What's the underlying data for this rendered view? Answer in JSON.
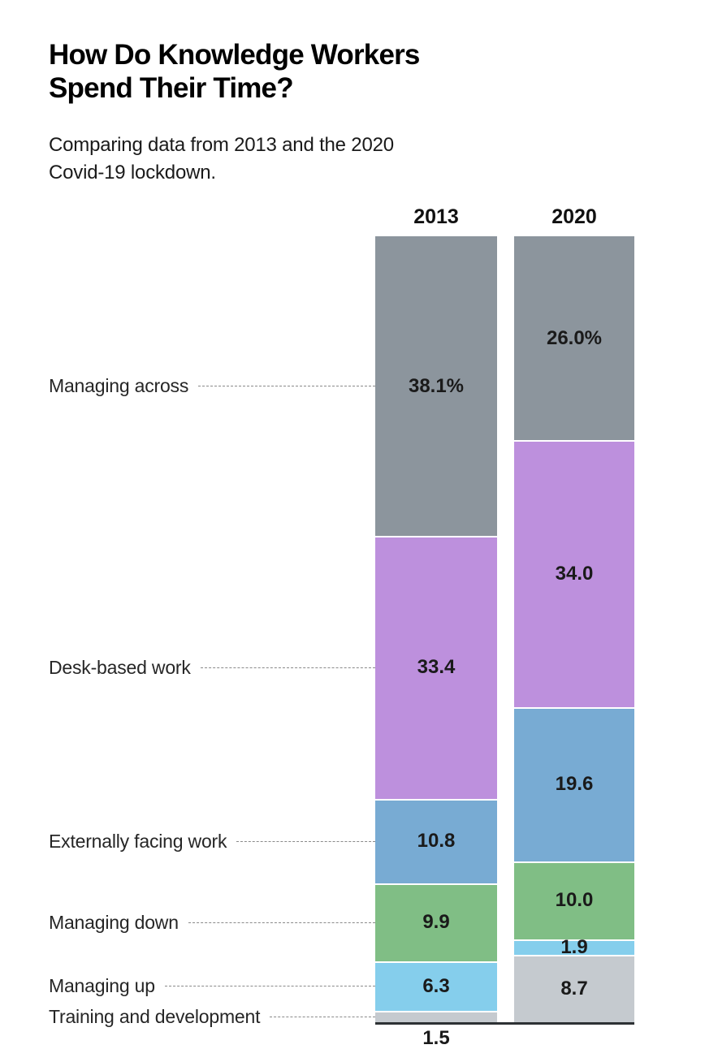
{
  "header": {
    "title_lines": [
      "How Do Knowledge Workers",
      "Spend Their Time?"
    ],
    "subtitle_lines": [
      "Comparing data from 2013 and the 2020",
      "Covid-19 lockdown."
    ]
  },
  "chart_data": {
    "type": "bar",
    "variant": "100%-stacked-vertical",
    "title": "How Do Knowledge Workers Spend Their Time?",
    "subtitle": "Comparing data from 2013 and the 2020 Covid-19 lockdown.",
    "columns": [
      "2013",
      "2020"
    ],
    "categories": [
      "Managing across",
      "Desk-based work",
      "Externally facing work",
      "Managing down",
      "Managing up",
      "Training and development"
    ],
    "series": [
      {
        "name": "2013",
        "values": [
          38.1,
          33.4,
          10.8,
          9.9,
          6.3,
          1.5
        ],
        "display": [
          "38.1%",
          "33.4",
          "10.8",
          "9.9",
          "6.3",
          "1.5"
        ],
        "outside_labels": [
          false,
          false,
          false,
          false,
          false,
          true
        ]
      },
      {
        "name": "2020",
        "values": [
          26.0,
          34.0,
          19.6,
          10.0,
          1.9,
          8.7
        ],
        "display": [
          "26.0%",
          "34.0",
          "19.6",
          "10.0",
          "1.9",
          "8.7"
        ],
        "outside_labels": [
          false,
          false,
          false,
          false,
          false,
          false
        ]
      }
    ],
    "colors": {
      "Managing across": "#8C959D",
      "Desk-based work": "#BD90DD",
      "Externally facing work": "#78ABD3",
      "Managing down": "#80BE85",
      "Managing up": "#85CEEC",
      "Training and development": "#C5CACF"
    },
    "text_colors": {
      "title": "#000000",
      "subtitle": "#1a1a1a",
      "value_labels": "#1a1a1a",
      "category_labels": "#262626",
      "leader_line": "#8a8a8a",
      "baseline": "#2d3134"
    },
    "axis": "none",
    "grid": false,
    "legend_position": "left-category-labels-with-dashed-leaders",
    "ylim_percent": [
      0,
      100
    ]
  }
}
